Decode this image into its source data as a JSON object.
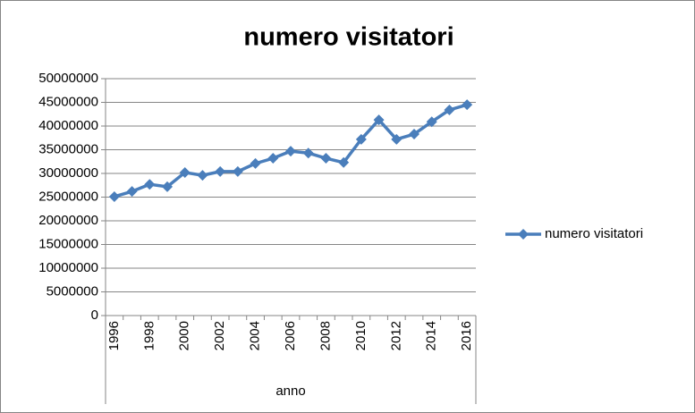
{
  "chart_data": {
    "type": "line",
    "title": "numero visitatori",
    "x_label": "anno",
    "categories": [
      "1996",
      null,
      "1998",
      null,
      "2000",
      null,
      "2002",
      null,
      "2004",
      null,
      "2006",
      null,
      "2008",
      null,
      "2010",
      null,
      "2012",
      null,
      "2014",
      null,
      "2016"
    ],
    "series": [
      {
        "name": "numero visitatori",
        "color": "#4a7ebb",
        "values": [
          25100000,
          26200000,
          27700000,
          27200000,
          30200000,
          29600000,
          30400000,
          30400000,
          32100000,
          33200000,
          34700000,
          34300000,
          33200000,
          32300000,
          37200000,
          41300000,
          37200000,
          38300000,
          40900000,
          43400000,
          44500000
        ]
      }
    ],
    "ylim": [
      0,
      50000000
    ],
    "yticks": [
      0,
      5000000,
      10000000,
      15000000,
      20000000,
      25000000,
      30000000,
      35000000,
      40000000,
      45000000,
      50000000
    ],
    "grid": true,
    "legend": "right"
  }
}
